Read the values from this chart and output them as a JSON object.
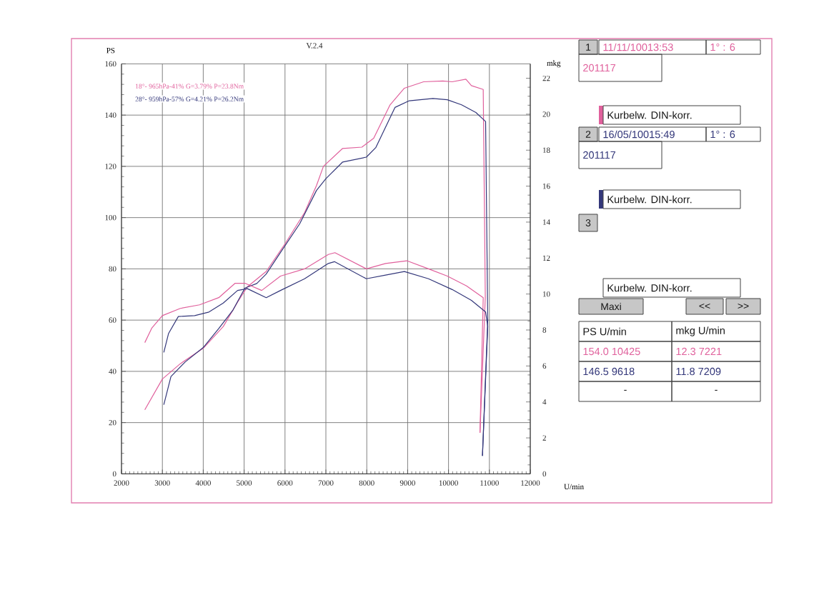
{
  "chart_data": [
    {
      "type": "line",
      "xlabel": "U/min",
      "ylabel": "PS",
      "y2label": "mkg",
      "annotations": [
        "V.2.4"
      ],
      "xlim": [
        2000,
        12000
      ],
      "ylim": [
        0,
        160
      ],
      "y2lim": [
        0,
        22.8
      ],
      "xticks": [
        2000,
        3000,
        4000,
        5000,
        6000,
        7000,
        8000,
        9000,
        10000,
        11000,
        12000
      ],
      "yticks": [
        0,
        20,
        40,
        60,
        80,
        100,
        120,
        140,
        160
      ],
      "y2ticks": [
        0,
        2,
        4,
        6,
        8,
        10,
        12,
        14,
        16,
        18,
        20,
        22
      ],
      "grid": true,
      "legend": "top left",
      "marker": "none",
      "series": [
        {
          "name": "18°- 965hPa-41% G=3.79% P=23.8Nm",
          "color": "#e0609c",
          "x": [
            2570,
            3000,
            3440,
            4000,
            4490,
            4840,
            5080,
            5540,
            6010,
            6480,
            6770,
            6940,
            7410,
            7880,
            8170,
            8570,
            8920,
            9390,
            9860,
            10090,
            10425,
            10560,
            10849,
            10900,
            10770
          ],
          "values": [
            25,
            37,
            43,
            49,
            57.5,
            67,
            73,
            79,
            90,
            102,
            112.5,
            120,
            127,
            127.5,
            131,
            144,
            150.5,
            153,
            153.3,
            153,
            154.0,
            151.5,
            150,
            69,
            16
          ]
        },
        {
          "color": "#e0609c",
          "axis": "y2",
          "x": [
            2570,
            2740,
            3000,
            3440,
            3910,
            4380,
            4780,
            5020,
            5430,
            5890,
            6480,
            7060,
            7221,
            7990,
            8460,
            8980,
            9510,
            9970,
            10440,
            10849,
            10770
          ],
          "values": [
            7.3,
            8.1,
            8.8,
            9.2,
            9.4,
            9.8,
            10.6,
            10.6,
            10.2,
            11.0,
            11.4,
            12.2,
            12.3,
            11.4,
            11.7,
            11.85,
            11.4,
            11.0,
            10.45,
            9.8,
            2.3
          ]
        },
        {
          "name": "28°- 959hPa-57% G=4.21% P=26.2Nm",
          "color": "#33377a",
          "x": [
            3035,
            3210,
            3560,
            4000,
            4380,
            4730,
            5020,
            5310,
            5540,
            5890,
            6360,
            6770,
            7000,
            7410,
            7990,
            8220,
            8690,
            9040,
            9618,
            9970,
            10320,
            10670,
            10907,
            10960,
            10830
          ],
          "values": [
            27,
            38,
            43.7,
            49.3,
            56.7,
            64,
            72.5,
            74.3,
            78,
            86.4,
            97.6,
            110.6,
            115.2,
            121.7,
            123.6,
            127.3,
            143,
            145.6,
            146.5,
            146,
            144,
            141,
            137.5,
            60,
            7
          ]
        },
        {
          "color": "#33377a",
          "axis": "y2",
          "x": [
            3035,
            3150,
            3390,
            3790,
            4140,
            4490,
            4840,
            5080,
            5540,
            5890,
            6480,
            7060,
            7209,
            7990,
            8460,
            8920,
            9510,
            10090,
            10560,
            10907,
            10960,
            10830
          ],
          "values": [
            6.75,
            7.8,
            8.75,
            8.8,
            9.0,
            9.5,
            10.2,
            10.3,
            9.8,
            10.2,
            10.85,
            11.7,
            11.8,
            10.85,
            11.05,
            11.25,
            10.85,
            10.25,
            9.65,
            9.0,
            8.2,
            1.0
          ]
        }
      ]
    },
    {
      "type": "other",
      "annotations": [
        "1",
        "11/11/10013:53",
        "1° : 6",
        "201117",
        "Kurbelw. DIN-korr.",
        "2",
        "16/05/10015:49",
        "1° : 6",
        "201117",
        "Kurbelw. DIN-korr.",
        "3",
        "Kurbelw. DIN-korr.",
        "Maxi",
        "<<",
        ">>",
        "PS    U/min",
        "mkg  U/min",
        "154.0 10425",
        "12.3  7221",
        "146.5  9618",
        "11.8  7209",
        "-",
        "-"
      ]
    }
  ]
}
